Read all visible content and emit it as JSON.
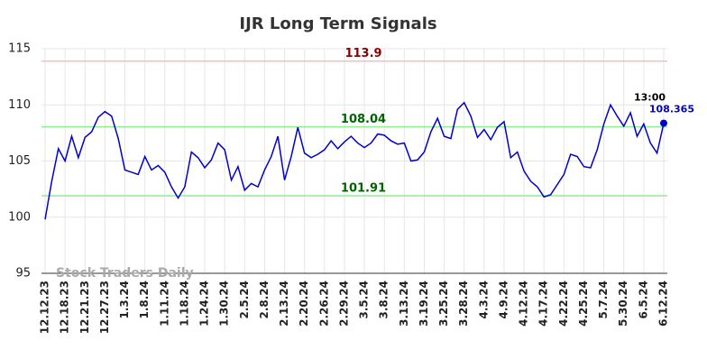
{
  "chart_data": {
    "type": "line",
    "title": "IJR Long Term Signals",
    "categories": [
      "12.12.23",
      null,
      null,
      "12.18.23",
      null,
      null,
      "12.21.23",
      null,
      null,
      "12.27.23",
      null,
      null,
      "1.3.24",
      null,
      null,
      "1.8.24",
      null,
      null,
      "1.11.24",
      null,
      null,
      "1.18.24",
      null,
      null,
      "1.24.24",
      null,
      null,
      "1.30.24",
      null,
      null,
      "2.5.24",
      null,
      null,
      "2.8.24",
      null,
      null,
      "2.13.24",
      null,
      null,
      "2.20.24",
      null,
      null,
      "2.26.24",
      null,
      null,
      "2.29.24",
      null,
      null,
      "3.5.24",
      null,
      null,
      "3.8.24",
      null,
      null,
      "3.13.24",
      null,
      null,
      "3.19.24",
      null,
      null,
      "3.25.24",
      null,
      null,
      "3.28.24",
      null,
      null,
      "4.3.24",
      null,
      null,
      "4.9.24",
      null,
      null,
      "4.12.24",
      null,
      null,
      "4.17.24",
      null,
      null,
      "4.22.24",
      null,
      null,
      "4.25.24",
      null,
      null,
      "5.7.24",
      null,
      null,
      "5.30.24",
      null,
      null,
      "6.5.24",
      null,
      null,
      "6.12.24"
    ],
    "series": [
      {
        "name": "IJR",
        "color": "#0000cc",
        "values": [
          99.8,
          103.2,
          106.1,
          105.0,
          107.2,
          105.3,
          107.1,
          107.6,
          108.9,
          109.4,
          109.0,
          107.0,
          104.2,
          104.0,
          103.8,
          105.4,
          104.2,
          104.6,
          104.0,
          102.7,
          101.7,
          102.7,
          105.8,
          105.3,
          104.4,
          105.1,
          106.6,
          106.0,
          103.3,
          104.5,
          102.4,
          103.0,
          102.7,
          104.2,
          105.4,
          107.2,
          103.3,
          105.4,
          108.0,
          105.7,
          105.3,
          105.6,
          106.0,
          106.8,
          106.1,
          106.7,
          107.2,
          106.6,
          106.2,
          106.6,
          107.4,
          107.3,
          106.8,
          106.5,
          106.6,
          105.0,
          105.1,
          105.8,
          107.6,
          108.8,
          107.2,
          107.0,
          109.6,
          110.2,
          109.0,
          107.1,
          107.8,
          106.9,
          108.0,
          108.5,
          105.3,
          105.8,
          104.1,
          103.2,
          102.7,
          101.8,
          102.0,
          102.9,
          103.8,
          105.6,
          105.4,
          104.5,
          104.4,
          106.0,
          108.3,
          110.0,
          109.0,
          108.1,
          109.3,
          107.2,
          108.3,
          106.6,
          105.7,
          108.365
        ]
      }
    ],
    "hlines": [
      {
        "value": 113.9,
        "color": "#ffbbbb",
        "label_color": "#8b0000"
      },
      {
        "value": 108.04,
        "color": "#90ee90",
        "label_color": "#006400"
      },
      {
        "value": 101.91,
        "color": "#90ee90",
        "label_color": "#006400"
      }
    ],
    "last_annotation": "13:00",
    "watermark": "Stock Traders Daily",
    "ylim": [
      95,
      115
    ],
    "yticks": [
      95,
      100,
      105,
      110,
      115
    ],
    "grid": true
  }
}
